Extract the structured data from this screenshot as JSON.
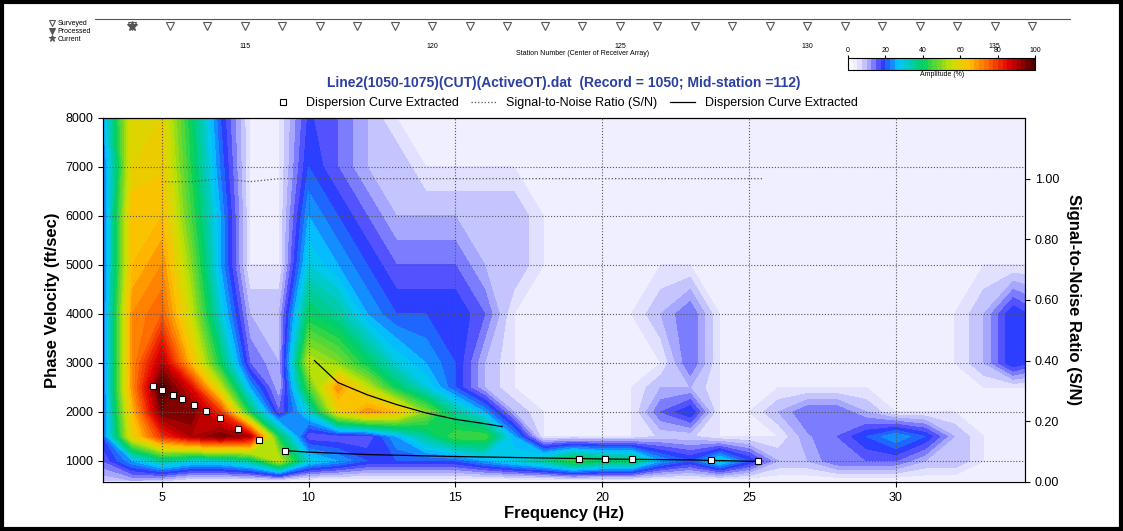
{
  "chart_data": [
    {
      "type": "scatter",
      "xlabel": "Station Number (Center of Receiver Array)",
      "xlim": [
        111,
        137
      ],
      "xticks": [
        115,
        120,
        125,
        130,
        135
      ],
      "legend": "left",
      "tick_labels": "x",
      "series": [
        {
          "name": "Surveyed",
          "marker": "triangle_down_open",
          "color": "#555555",
          "x": [
            112,
            113,
            114,
            115,
            116,
            117,
            118,
            119,
            120,
            121,
            122,
            123,
            124,
            125,
            126,
            127,
            128,
            129,
            130,
            131,
            132,
            133,
            134,
            135,
            136
          ]
        },
        {
          "name": "Processed",
          "marker": "triangle_down",
          "color": "#555555",
          "x": []
        },
        {
          "name": "Current",
          "marker": "star",
          "color": "#555555",
          "x": [
            112
          ]
        }
      ]
    },
    {
      "type": "heatmap",
      "title": "Line2(1050-1075)(CUT)(ActiveOT).dat  (Record = 1050; Mid-station =112)",
      "xlabel": "Frequency (Hz)",
      "ylabel": "Phase Velocity (ft/sec)",
      "y2label": "Signal-to-Noise Ratio (S/N)",
      "xlim": [
        3,
        34.4
      ],
      "xticks": [
        5,
        10,
        15,
        20,
        25,
        30
      ],
      "ylim": [
        570,
        8000
      ],
      "yticks": [
        1000,
        2000,
        3000,
        4000,
        5000,
        6000,
        7000,
        8000
      ],
      "y2lim": [
        0,
        1.2
      ],
      "y2ticks": [
        {
          "value": 0,
          "label": "0.00"
        },
        {
          "value": 0.2,
          "label": "0.20"
        },
        {
          "value": 0.4,
          "label": "0.40"
        },
        {
          "value": 0.6,
          "label": "0.60"
        },
        {
          "value": 0.8,
          "label": "0.80"
        },
        {
          "value": 1.0,
          "label": "1.00"
        }
      ],
      "grid": true,
      "legend": "upper center",
      "colorbar": {
        "label": "Amplitude (%)",
        "range": [
          0,
          100
        ],
        "ticks": [
          0,
          20,
          40,
          60,
          80,
          100
        ]
      },
      "x": [
        3,
        4,
        5,
        6,
        7,
        8,
        9,
        10,
        11,
        12,
        13,
        14,
        15,
        16,
        17,
        18,
        19,
        20,
        21,
        22,
        23,
        24,
        25,
        26,
        27,
        28,
        29,
        30,
        31,
        32,
        33,
        34,
        35
      ],
      "y": [
        600,
        1000,
        1500,
        2000,
        2500,
        3000,
        4000,
        5000,
        6000,
        7000,
        8000
      ],
      "cells": [
        [
          8,
          10,
          8,
          5,
          5,
          5,
          5,
          3,
          3,
          3,
          3,
          3,
          3,
          3,
          3,
          3,
          3,
          3,
          3,
          3,
          3,
          3,
          3,
          3,
          3,
          3,
          3,
          3,
          3,
          3,
          3,
          3,
          3
        ],
        [
          15,
          25,
          35,
          30,
          30,
          35,
          55,
          30,
          25,
          20,
          20,
          20,
          20,
          25,
          30,
          35,
          45,
          40,
          40,
          25,
          20,
          30,
          20,
          10,
          10,
          15,
          15,
          15,
          10,
          10,
          5,
          5,
          5
        ],
        [
          20,
          60,
          80,
          90,
          95,
          90,
          40,
          15,
          15,
          15,
          25,
          35,
          45,
          45,
          25,
          5,
          5,
          5,
          5,
          8,
          8,
          5,
          5,
          5,
          12,
          15,
          20,
          25,
          20,
          10,
          5,
          5,
          5
        ],
        [
          20,
          65,
          95,
          95,
          80,
          40,
          15,
          30,
          60,
          70,
          65,
          50,
          35,
          25,
          10,
          5,
          5,
          5,
          5,
          15,
          20,
          5,
          5,
          10,
          15,
          15,
          10,
          5,
          5,
          5,
          5,
          5,
          5
        ],
        [
          20,
          70,
          100,
          85,
          55,
          25,
          10,
          45,
          70,
          55,
          40,
          30,
          20,
          10,
          5,
          5,
          5,
          5,
          5,
          10,
          10,
          5,
          5,
          5,
          5,
          5,
          5,
          5,
          5,
          5,
          5,
          5,
          5
        ],
        [
          20,
          70,
          90,
          65,
          40,
          15,
          10,
          55,
          50,
          40,
          30,
          25,
          20,
          10,
          5,
          5,
          5,
          5,
          5,
          5,
          15,
          5,
          5,
          5,
          5,
          5,
          5,
          5,
          5,
          5,
          10,
          20,
          15
        ],
        [
          20,
          70,
          75,
          55,
          30,
          10,
          10,
          40,
          35,
          25,
          20,
          20,
          20,
          15,
          5,
          5,
          5,
          5,
          5,
          10,
          15,
          5,
          5,
          5,
          5,
          5,
          5,
          5,
          5,
          5,
          10,
          20,
          15
        ],
        [
          20,
          65,
          70,
          50,
          25,
          5,
          5,
          30,
          25,
          20,
          15,
          15,
          15,
          10,
          10,
          5,
          5,
          5,
          5,
          5,
          5,
          5,
          5,
          5,
          5,
          5,
          5,
          5,
          5,
          5,
          5,
          5,
          5
        ],
        [
          20,
          65,
          65,
          45,
          25,
          5,
          5,
          25,
          20,
          15,
          10,
          10,
          10,
          10,
          10,
          5,
          5,
          5,
          5,
          5,
          5,
          5,
          5,
          5,
          5,
          5,
          5,
          5,
          5,
          5,
          5,
          5,
          5
        ],
        [
          20,
          60,
          62,
          42,
          22,
          5,
          5,
          20,
          15,
          10,
          10,
          5,
          5,
          5,
          5,
          5,
          5,
          5,
          5,
          5,
          5,
          5,
          5,
          5,
          5,
          5,
          5,
          5,
          5,
          5,
          5,
          5,
          5
        ],
        [
          25,
          60,
          60,
          40,
          20,
          5,
          5,
          18,
          15,
          10,
          5,
          5,
          5,
          5,
          5,
          5,
          5,
          5,
          5,
          5,
          5,
          5,
          5,
          5,
          5,
          5,
          5,
          5,
          5,
          5,
          5,
          5,
          5
        ]
      ],
      "series": [
        {
          "name": "Dispersion Curve Extracted",
          "type": "scatter",
          "marker": "square",
          "line_style": "none",
          "color": "#ffffff",
          "x": [
            4.7,
            5.0,
            5.4,
            5.7,
            6.1,
            6.5,
            7.0,
            7.6,
            8.3,
            9.2,
            19.2,
            20.1,
            21.0,
            23.7,
            25.3
          ],
          "values": [
            2530,
            2450,
            2350,
            2270,
            2150,
            2020,
            1870,
            1660,
            1430,
            1210,
            1030,
            1030,
            1030,
            1010,
            990
          ]
        },
        {
          "name": "Signal-to-Noise Ratio (S/N)",
          "type": "line",
          "line_style": "dotted",
          "color": "#555555",
          "axis": "y2",
          "x": [
            5,
            6,
            7,
            8,
            9,
            10,
            11,
            12,
            13,
            14,
            15,
            16,
            17,
            18,
            19,
            20,
            21,
            22,
            23,
            24,
            25,
            25.5
          ],
          "values": [
            0.99,
            0.99,
            1.0,
            0.99,
            1.0,
            1.0,
            1.0,
            1.0,
            1.0,
            1.0,
            1.0,
            1.0,
            1.0,
            1.0,
            1.0,
            1.0,
            1.0,
            1.0,
            1.0,
            1.0,
            1.0,
            1.0
          ]
        },
        {
          "name": "Dispersion Curve Extracted",
          "type": "line",
          "line_style": "solid",
          "color": "#000000",
          "x": [
            9.2,
            10,
            12,
            15,
            18,
            20,
            23,
            25.3,
            25.3,
            10.2,
            11,
            12,
            13,
            14,
            15,
            16,
            16.6
          ],
          "values": [
            1210,
            1180,
            1130,
            1090,
            1060,
            1040,
            1020,
            990,
            null,
            3050,
            2600,
            2350,
            2150,
            1980,
            1850,
            1760,
            1700
          ]
        }
      ]
    }
  ]
}
